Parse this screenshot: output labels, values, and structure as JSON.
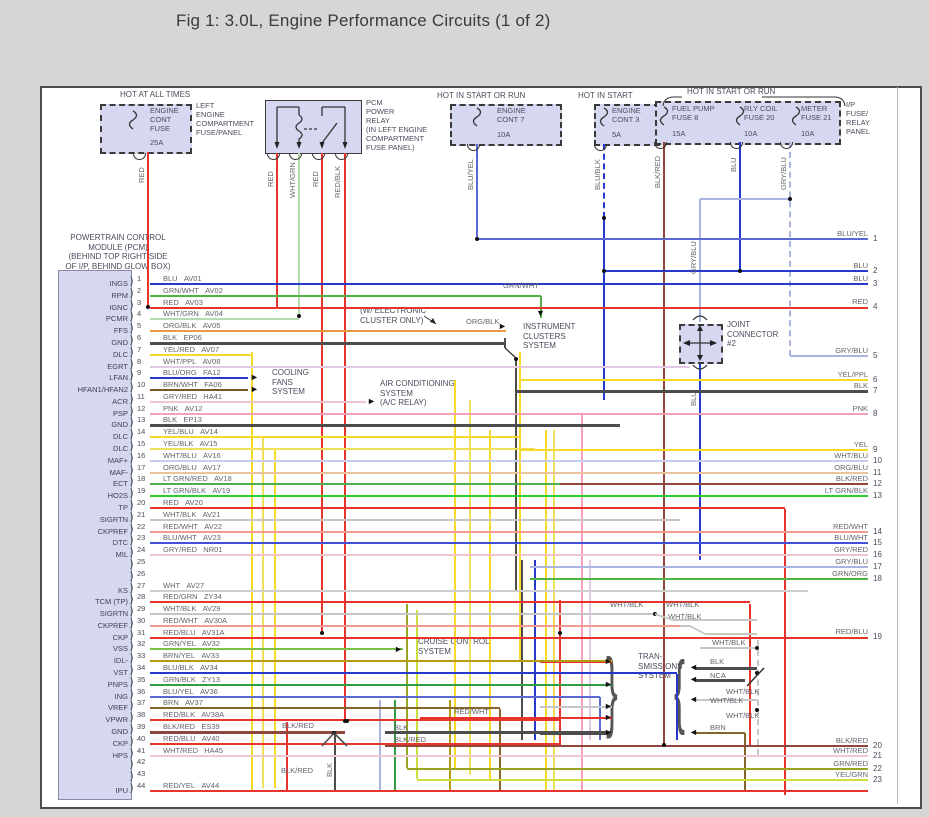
{
  "title": "Fig 1: 3.0L, Engine Performance Circuits (1 of 2)",
  "palette": {
    "BLU": "#2738cc",
    "GRN/WHT": "#53b147",
    "RED": "#e8352c",
    "WHT/GRN": "#b5dcae",
    "ORG/BLK": "#f09a40",
    "BLK": "#4d4d4d",
    "YEL/RED": "#f6d929",
    "WHT/PPL": "#e2c8e4",
    "BLU/ORG": "#2738cc",
    "BRN/WHT": "#7a5626",
    "GRY/RED": "#f0c4cc",
    "PNK": "#f3a0be",
    "YEL/BLU": "#f6d929",
    "YEL/BLK": "#efe058",
    "WHT/BLU": "#c6ccf2",
    "ORG/BLU": "#ecc49c",
    "LT GRN/RED": "#4cae4c",
    "LT GRN/BLK": "#2ecc2e",
    "WHT/BLK": "#c6c6c6",
    "RED/WHT": "#f29b94",
    "BLU/WHT": "#4150d8",
    "WHT": "#cfcfcf",
    "RED/GRN": "#e8352c",
    "RED/BLU": "#e8352c",
    "GRN/YEL": "#7ac143",
    "BRN/YEL": "#b49b12",
    "BLU/BLK": "#2738cc",
    "GRN/BLK": "#2f9e45",
    "BLU/YEL": "#5a68d2",
    "BRN": "#86652a",
    "RED/BLK": "#e8352c",
    "BLK/RED": "#8f463f",
    "WHT/RED": "#f0c8d0",
    "RED/YEL": "#e8352c",
    "YEL/PPL": "#f6d929",
    "YEL": "#f6d929",
    "GRY/BLU": "#aab4e0",
    "GRN/ORG": "#53b147",
    "GRN/RED": "#9aa51f",
    "YEL/GRN": "#cdde3c",
    "NCA": "#4d4d4d"
  },
  "power": {
    "hot_all_times": {
      "heading": "HOT AT ALL TIMES",
      "fuse_name": "ENGINE\nCONT\nFUSE",
      "amps": "25A",
      "panel": "LEFT\nENGINE\nCOMPARTMENT\nFUSE/PANEL",
      "wire": "RED"
    },
    "pcm_relay": {
      "label": "PCM\nPOWER\nRELAY\n(IN LEFT ENGINE\nCOMPARTMENT\nFUSE PANEL)",
      "wires": [
        "RED",
        "WHT/GRN",
        "RED",
        "RED/BLK"
      ]
    },
    "start_run_left": {
      "heading": "HOT IN START OR RUN",
      "fuse_name": "ENGINE\nCONT 7",
      "amps": "10A",
      "wire": "BLU/YEL"
    },
    "hot_start": {
      "heading": "HOT IN START",
      "fuse_name": "ENGINE\nCONT 3",
      "amps": "5A",
      "wire": "BLU/BLK"
    },
    "ip": {
      "heading": "HOT IN START OR RUN",
      "panel": "I/P\nFUSE/\nRELAY\nPANEL",
      "fuses": [
        {
          "name": "FUEL PUMP\nFUSE 8",
          "amps": "15A",
          "wire": "BLK/RED"
        },
        {
          "name": "RLY COIL\nFUSE 20",
          "amps": "10A",
          "wire": "BLU"
        },
        {
          "name": "METER\nFUSE 21",
          "amps": "10A",
          "wire": "GRY/BLU"
        }
      ]
    }
  },
  "pcm": {
    "header": "POWERTRAIN CONTROL\nMODULE (PCM)\n(BEHIND TOP RIGHT SIDE\nOF I/P, BEHIND GLOW BOX)"
  },
  "components": {
    "cooling": "COOLING\nFANS\nSYSTEM",
    "instrument": "INSTRUMENT\nCLUSTERS\nSYSTEM",
    "electronic_note": "(W/ ELECTRONIC\nCLUSTER ONLY)",
    "ac": "AIR CONDITIONING\nSYSTEM\n(A/C RELAY)",
    "joint": "JOINT\nCONNECTOR\n#2",
    "cruise": "CRUISE CONTROL\nSYSTEM",
    "trans": "TRAN-\nSMISSIONS\nSYSTEM"
  },
  "pins": [
    {
      "n": 1,
      "name": "INGS",
      "color": "BLU",
      "circuit": "AV01"
    },
    {
      "n": 2,
      "name": "RPM",
      "color": "GRN/WHT",
      "circuit": "AV02"
    },
    {
      "n": 3,
      "name": "IGNC",
      "color": "RED",
      "circuit": "AV03"
    },
    {
      "n": 4,
      "name": "PCMR",
      "color": "WHT/GRN",
      "circuit": "AV04"
    },
    {
      "n": 5,
      "name": "FFS",
      "color": "ORG/BLK",
      "circuit": "AV05"
    },
    {
      "n": 6,
      "name": "GND",
      "color": "BLK",
      "circuit": "EP06"
    },
    {
      "n": 7,
      "name": "DLC",
      "color": "YEL/RED",
      "circuit": "AV07"
    },
    {
      "n": 8,
      "name": "EGRT",
      "color": "WHT/PPL",
      "circuit": "AV08"
    },
    {
      "n": 9,
      "name": "LFAN",
      "color": "BLU/ORG",
      "circuit": "FA12"
    },
    {
      "n": 10,
      "name": "HFAN1/HFAN2",
      "color": "BRN/WHT",
      "circuit": "FA06"
    },
    {
      "n": 11,
      "name": "ACR",
      "color": "GRY/RED",
      "circuit": "HA41"
    },
    {
      "n": 12,
      "name": "PSP",
      "color": "PNK",
      "circuit": "AV12"
    },
    {
      "n": 13,
      "name": "GND",
      "color": "BLK",
      "circuit": "EP13"
    },
    {
      "n": 14,
      "name": "DLC",
      "color": "YEL/BLU",
      "circuit": "AV14"
    },
    {
      "n": 15,
      "name": "DLC",
      "color": "YEL/BLK",
      "circuit": "AV15"
    },
    {
      "n": 16,
      "name": "MAF+",
      "color": "WHT/BLU",
      "circuit": "AV16"
    },
    {
      "n": 17,
      "name": "MAF-",
      "color": "ORG/BLU",
      "circuit": "AV17"
    },
    {
      "n": 18,
      "name": "ECT",
      "color": "LT GRN/RED",
      "circuit": "AV18"
    },
    {
      "n": 19,
      "name": "HO2S",
      "color": "LT GRN/BLK",
      "circuit": "AV19"
    },
    {
      "n": 20,
      "name": "TP",
      "color": "RED",
      "circuit": "AV20"
    },
    {
      "n": 21,
      "name": "SIGRTN",
      "color": "WHT/BLK",
      "circuit": "AV21"
    },
    {
      "n": 22,
      "name": "CKPREF",
      "color": "RED/WHT",
      "circuit": "AV22"
    },
    {
      "n": 23,
      "name": "DTC",
      "color": "BLU/WHT",
      "circuit": "AV23"
    },
    {
      "n": 24,
      "name": "MIL",
      "color": "GRY/RED",
      "circuit": "NR01"
    },
    {
      "n": 25,
      "name": "",
      "color": "",
      "circuit": ""
    },
    {
      "n": 26,
      "name": "",
      "color": "",
      "circuit": ""
    },
    {
      "n": 27,
      "name": "KS",
      "color": "WHT",
      "circuit": "AV27"
    },
    {
      "n": 28,
      "name": "TCM (TP)",
      "color": "RED/GRN",
      "circuit": "ZY34"
    },
    {
      "n": 29,
      "name": "SIGRTN",
      "color": "WHT/BLK",
      "circuit": "AV29"
    },
    {
      "n": 30,
      "name": "CKPREF",
      "color": "RED/WHT",
      "circuit": "AV30A"
    },
    {
      "n": 31,
      "name": "CKP",
      "color": "RED/BLU",
      "circuit": "AV31A"
    },
    {
      "n": 32,
      "name": "VSS",
      "color": "GRN/YEL",
      "circuit": "AV32"
    },
    {
      "n": 33,
      "name": "IDL-",
      "color": "BRN/YEL",
      "circuit": "AV33"
    },
    {
      "n": 34,
      "name": "VST",
      "color": "BLU/BLK",
      "circuit": "AV34"
    },
    {
      "n": 35,
      "name": "PNPS",
      "color": "GRN/BLK",
      "circuit": "ZY13"
    },
    {
      "n": 36,
      "name": "ING",
      "color": "BLU/YEL",
      "circuit": "AV36"
    },
    {
      "n": 37,
      "name": "VREF",
      "color": "BRN",
      "circuit": "AV37"
    },
    {
      "n": 38,
      "name": "VPWR",
      "color": "RED/BLK",
      "circuit": "AV38A"
    },
    {
      "n": 39,
      "name": "GND",
      "color": "BLK/RED",
      "circuit": "ES39"
    },
    {
      "n": 40,
      "name": "CKP",
      "color": "RED/BLU",
      "circuit": "AV40"
    },
    {
      "n": 41,
      "name": "HPS",
      "color": "WHT/RED",
      "circuit": "HA45"
    },
    {
      "n": 42,
      "name": "",
      "color": "",
      "circuit": ""
    },
    {
      "n": 43,
      "name": "",
      "color": "",
      "circuit": ""
    },
    {
      "n": 44,
      "name": "IPU",
      "color": "RED/YEL",
      "circuit": "AV44"
    }
  ],
  "right_lines": [
    {
      "n": 1,
      "label": "BLU/YEL"
    },
    {
      "n": 2,
      "label": "BLU"
    },
    {
      "n": 3,
      "label": "BLU"
    },
    {
      "n": 4,
      "label": "RED"
    },
    {
      "n": 5,
      "label": "GRY/BLU"
    },
    {
      "n": 6,
      "label": "YEL/PPL"
    },
    {
      "n": 7,
      "label": "BLK"
    },
    {
      "n": 8,
      "label": "PNK"
    },
    {
      "n": 9,
      "label": "YEL"
    },
    {
      "n": 10,
      "label": "WHT/BLU"
    },
    {
      "n": 11,
      "label": "ORG/BLU"
    },
    {
      "n": 12,
      "label": "BLK/RED"
    },
    {
      "n": 13,
      "label": "LT GRN/BLK"
    },
    {
      "n": 14,
      "label": "RED/WHT"
    },
    {
      "n": 15,
      "label": "BLU/WHT"
    },
    {
      "n": 16,
      "label": "GRY/RED"
    },
    {
      "n": 17,
      "label": "GRY/BLU"
    },
    {
      "n": 18,
      "label": "GRN/ORG"
    },
    {
      "n": 19,
      "label": "RED/BLU"
    },
    {
      "n": 20,
      "label": "BLK/RED"
    },
    {
      "n": 21,
      "label": "WHT/RED"
    },
    {
      "n": 22,
      "label": "GRN/RED"
    },
    {
      "n": 23,
      "label": "YEL/GRN"
    }
  ],
  "floats": [
    "RED",
    "RED",
    "WHT/GRN",
    "RED",
    "RED/BLK",
    "BLU/YEL",
    "BLU/BLK",
    "BLK/RED",
    "BLU",
    "GRY/BLU",
    "GRY/BLU",
    "BLU",
    "BLK",
    "GRN/WHT",
    "ORG/BLK",
    "WHT/BLK",
    "WHT/BLK",
    "WHT/BLK",
    "WHT/BLK",
    "BLK",
    "NCA",
    "WHT/BLK",
    "WHT/BLK",
    "WHT/BLK",
    "BRN",
    "RED/WHT",
    "BLK",
    "BLK/RED",
    "BLK/RED",
    "BLK/RED"
  ]
}
